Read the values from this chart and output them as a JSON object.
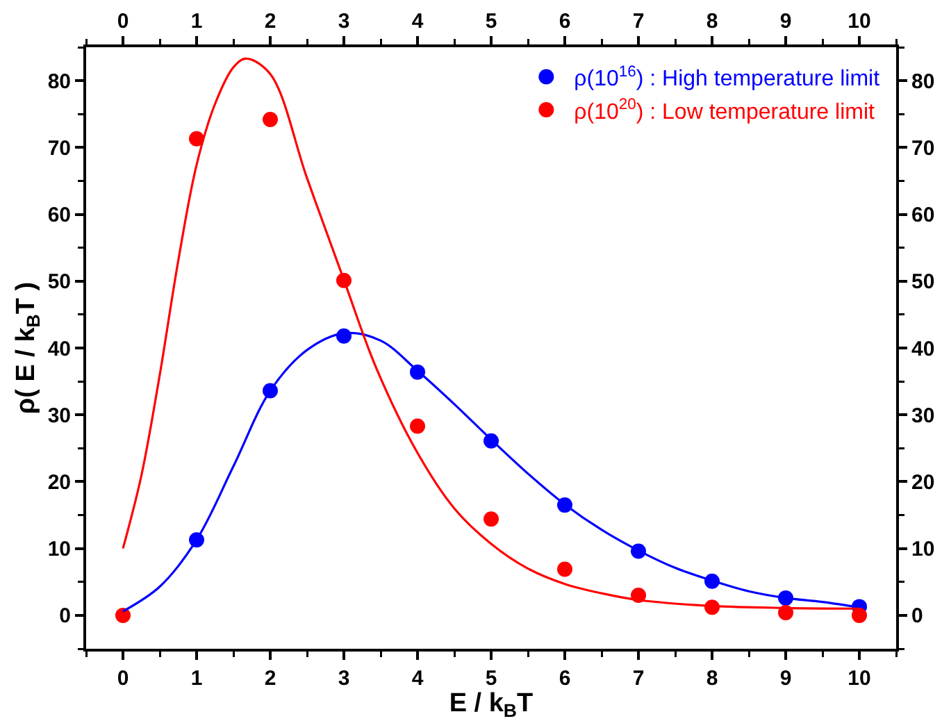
{
  "chart_data": {
    "type": "scatter",
    "xlabel": "E / k$_{B}$T",
    "ylabel": "ρ( E / k$_{B}$T )",
    "x": [
      0,
      1,
      2,
      3,
      4,
      5,
      6,
      7,
      8,
      9,
      10
    ],
    "series": [
      {
        "name": "ρ(10$^{16}$) : High temperature limit",
        "color": "#0000ff",
        "marker": "circle",
        "values": [
          null,
          11.3,
          33.6,
          41.8,
          36.4,
          26.1,
          16.5,
          9.6,
          5.1,
          2.6,
          1.3
        ]
      },
      {
        "name": "ρ(10$^{20}$) : Low temperature limit",
        "color": "#ff0000",
        "marker": "circle",
        "values": [
          0,
          71.3,
          74.2,
          50.1,
          28.3,
          14.4,
          6.9,
          3.0,
          1.2,
          0.4,
          0
        ]
      },
      {
        "type": "line",
        "color": "#0000ff",
        "x": [
          0,
          0.5,
          1,
          1.5,
          2,
          2.5,
          3,
          3.5,
          4,
          4.5,
          5,
          5.5,
          6,
          6.5,
          7,
          7.5,
          8,
          8.5,
          9,
          9.5,
          10
        ],
        "values": [
          0.6,
          4.3,
          11.3,
          22.3,
          33.6,
          39.7,
          42.2,
          41.1,
          36.6,
          31.6,
          26.3,
          21.2,
          16.6,
          12.8,
          9.7,
          7.1,
          5.2,
          3.6,
          2.6,
          2.0,
          1.2
        ]
      },
      {
        "type": "line",
        "color": "#ff0000",
        "x": [
          0,
          0.25,
          0.5,
          0.75,
          1,
          1.25,
          1.5,
          1.67,
          2,
          2.5,
          3,
          3.44,
          4,
          4.5,
          5,
          5.5,
          6,
          6.5,
          7,
          8,
          9,
          10
        ],
        "values": [
          10,
          20.9,
          36,
          53,
          67.4,
          76.5,
          82,
          83.3,
          81,
          65.4,
          50.2,
          37,
          24.3,
          16,
          10.7,
          7,
          4.7,
          3.3,
          2.3,
          1.4,
          1.1,
          1.0
        ]
      }
    ],
    "xlim": [
      -0.5,
      10.5
    ],
    "xticks": [
      0,
      1,
      2,
      3,
      4,
      5,
      6,
      7,
      8,
      9,
      10
    ],
    "x2lim": [
      -0.5,
      10.5
    ],
    "x2ticks": [
      0,
      1,
      2,
      3,
      4,
      5,
      6,
      7,
      8,
      9,
      10
    ],
    "ylim": [
      -5,
      85
    ],
    "yticks": [
      0,
      10,
      20,
      30,
      40,
      50,
      60,
      70,
      80
    ],
    "y2lim": [
      -5,
      85
    ],
    "y2ticks": [
      0,
      10,
      20,
      30,
      40,
      50,
      60,
      70,
      80
    ],
    "legend": "top right",
    "grid": false,
    "line_style": "solid"
  }
}
